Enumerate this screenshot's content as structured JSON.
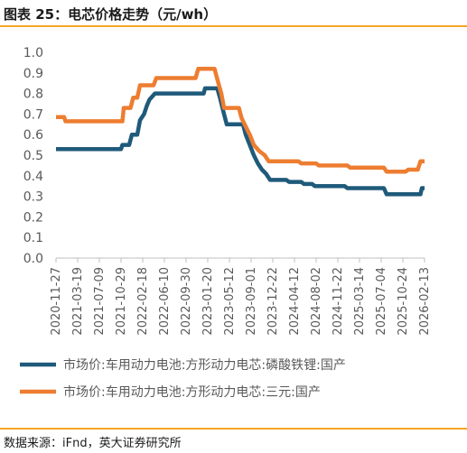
{
  "header": {
    "title": "图表 25：电芯价格走势（元/wh）"
  },
  "footer": {
    "source": "数据来源：iFnd，英大证券研究所"
  },
  "colors": {
    "accent": "#f5a623",
    "lfp": "#1f5a7a",
    "ternary": "#ed7d31",
    "axis": "#bfbfbf",
    "text": "#595959"
  },
  "chart_data": {
    "type": "line",
    "title": "",
    "xlabel": "",
    "ylabel": "",
    "ylim": [
      0,
      1
    ],
    "yticks": [
      "0.0",
      "0.1",
      "0.2",
      "0.3",
      "0.4",
      "0.5",
      "0.6",
      "0.7",
      "0.8",
      "0.9",
      "1.0"
    ],
    "xticks": [
      "2020-11-27",
      "2021-03-19",
      "2021-07-09",
      "2021-10-29",
      "2022-02-18",
      "2022-06-10",
      "2022-09-30",
      "2023-01-20",
      "2023-05-12",
      "2023-09-01",
      "2023-12-22",
      "2024-04-12",
      "2024-08-02",
      "2024-11-22",
      "2025-03-14",
      "2025-07-04",
      "2025-10-24",
      "2026-02-13"
    ],
    "grid": false,
    "legend_position": "bottom",
    "series": [
      {
        "name": "市场价:车用动力电池:方形动力电芯:磷酸铁锂:国产",
        "color": "#1f5a7a",
        "points": [
          [
            "2020-11-27",
            0.53
          ],
          [
            "2021-10-29",
            0.53
          ],
          [
            "2021-11-05",
            0.55
          ],
          [
            "2021-12-10",
            0.55
          ],
          [
            "2021-12-24",
            0.6
          ],
          [
            "2022-01-21",
            0.6
          ],
          [
            "2022-02-04",
            0.67
          ],
          [
            "2022-02-25",
            0.7
          ],
          [
            "2022-03-11",
            0.74
          ],
          [
            "2022-03-25",
            0.77
          ],
          [
            "2022-04-22",
            0.8
          ],
          [
            "2022-12-30",
            0.8
          ],
          [
            "2023-01-06",
            0.825
          ],
          [
            "2023-03-10",
            0.825
          ],
          [
            "2023-03-24",
            0.78
          ],
          [
            "2023-04-14",
            0.7
          ],
          [
            "2023-04-28",
            0.65
          ],
          [
            "2023-07-21",
            0.65
          ],
          [
            "2023-08-04",
            0.6
          ],
          [
            "2023-08-25",
            0.55
          ],
          [
            "2023-09-15",
            0.5
          ],
          [
            "2023-10-06",
            0.46
          ],
          [
            "2023-10-27",
            0.43
          ],
          [
            "2023-11-17",
            0.41
          ],
          [
            "2023-12-08",
            0.38
          ],
          [
            "2024-03-01",
            0.38
          ],
          [
            "2024-03-15",
            0.37
          ],
          [
            "2024-05-17",
            0.37
          ],
          [
            "2024-05-31",
            0.36
          ],
          [
            "2024-07-12",
            0.36
          ],
          [
            "2024-07-26",
            0.35
          ],
          [
            "2024-12-27",
            0.35
          ],
          [
            "2025-01-10",
            0.34
          ],
          [
            "2025-07-18",
            0.34
          ],
          [
            "2025-08-01",
            0.31
          ],
          [
            "2026-01-23",
            0.31
          ],
          [
            "2026-01-30",
            0.34
          ],
          [
            "2026-02-13",
            0.34
          ]
        ]
      },
      {
        "name": "市场价:车用动力电池:方形动力电芯:三元:国产",
        "color": "#ed7d31",
        "points": [
          [
            "2020-11-27",
            0.685
          ],
          [
            "2021-01-08",
            0.685
          ],
          [
            "2021-01-15",
            0.665
          ],
          [
            "2021-11-05",
            0.665
          ],
          [
            "2021-11-12",
            0.73
          ],
          [
            "2021-12-17",
            0.73
          ],
          [
            "2021-12-31",
            0.78
          ],
          [
            "2022-01-21",
            0.78
          ],
          [
            "2022-02-04",
            0.84
          ],
          [
            "2022-04-15",
            0.84
          ],
          [
            "2022-04-29",
            0.875
          ],
          [
            "2022-11-18",
            0.875
          ],
          [
            "2022-12-02",
            0.92
          ],
          [
            "2023-02-24",
            0.92
          ],
          [
            "2023-03-10",
            0.87
          ],
          [
            "2023-03-31",
            0.8
          ],
          [
            "2023-04-14",
            0.73
          ],
          [
            "2023-06-30",
            0.73
          ],
          [
            "2023-07-14",
            0.68
          ],
          [
            "2023-08-04",
            0.64
          ],
          [
            "2023-08-25",
            0.6
          ],
          [
            "2023-09-15",
            0.55
          ],
          [
            "2023-10-13",
            0.52
          ],
          [
            "2023-11-10",
            0.5
          ],
          [
            "2023-12-01",
            0.47
          ],
          [
            "2024-05-03",
            0.47
          ],
          [
            "2024-05-17",
            0.46
          ],
          [
            "2024-08-02",
            0.46
          ],
          [
            "2024-08-16",
            0.45
          ],
          [
            "2025-01-10",
            0.45
          ],
          [
            "2025-01-24",
            0.44
          ],
          [
            "2025-07-18",
            0.44
          ],
          [
            "2025-08-01",
            0.42
          ],
          [
            "2025-11-07",
            0.42
          ],
          [
            "2025-11-21",
            0.43
          ],
          [
            "2026-01-09",
            0.43
          ],
          [
            "2026-01-23",
            0.47
          ],
          [
            "2026-02-13",
            0.47
          ]
        ]
      }
    ]
  }
}
